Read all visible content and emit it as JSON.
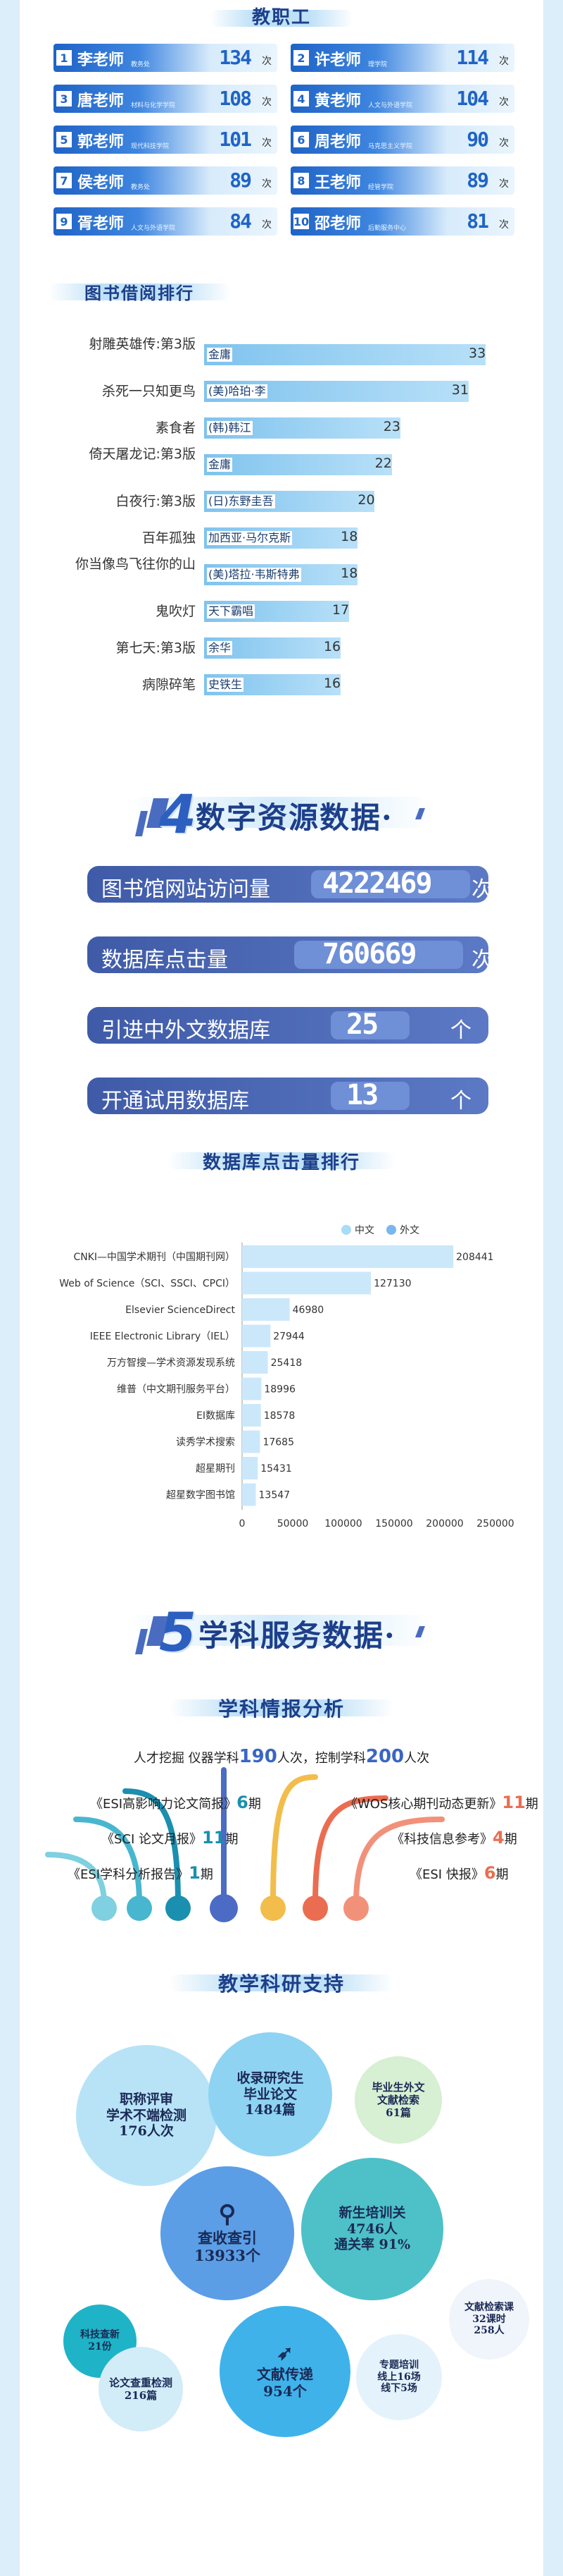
{
  "staff_section": {
    "title": "教职工",
    "unit": "次",
    "items": [
      {
        "rank": "1",
        "name": "李老师",
        "dept": "教务处",
        "count": "134"
      },
      {
        "rank": "2",
        "name": "许老师",
        "dept": "理学院",
        "count": "114"
      },
      {
        "rank": "3",
        "name": "唐老师",
        "dept": "材料与化学学院",
        "count": "108"
      },
      {
        "rank": "4",
        "name": "黄老师",
        "dept": "人文与外语学院",
        "count": "104"
      },
      {
        "rank": "5",
        "name": "郭老师",
        "dept": "现代科技学院",
        "count": "101"
      },
      {
        "rank": "6",
        "name": "周老师",
        "dept": "马克思主义学院",
        "count": "90"
      },
      {
        "rank": "7",
        "name": "侯老师",
        "dept": "教务处",
        "count": "89"
      },
      {
        "rank": "8",
        "name": "王老师",
        "dept": "经管学院",
        "count": "89"
      },
      {
        "rank": "9",
        "name": "胥老师",
        "dept": "人文与外语学院",
        "count": "84"
      },
      {
        "rank": "10",
        "name": "邵老师",
        "dept": "后勤服务中心",
        "count": "81"
      }
    ]
  },
  "book_section": {
    "title": "图书借阅排行",
    "books": [
      {
        "title": "射雕英雄传:第3版",
        "author": "金庸",
        "value": 33
      },
      {
        "title": "杀死一只知更鸟",
        "author": "(美)哈珀·李",
        "value": 31
      },
      {
        "title": "素食者",
        "author": "(韩)韩江",
        "value": 23
      },
      {
        "title": "倚天屠龙记:第3版",
        "author": "金庸",
        "value": 22
      },
      {
        "title": "白夜行:第3版",
        "author": "(日)东野圭吾",
        "value": 20
      },
      {
        "title": "百年孤独",
        "author": "加西亚·马尔克斯",
        "value": 18
      },
      {
        "title": "你当像鸟飞往你的山",
        "author": "(美)塔拉·韦斯特弗",
        "value": 18
      },
      {
        "title": "鬼吹灯",
        "author": "天下霸唱",
        "value": 17
      },
      {
        "title": "第七天:第3版",
        "author": "余华",
        "value": 16
      },
      {
        "title": "病隙碎笔",
        "author": "史铁生",
        "value": 16
      }
    ]
  },
  "digital_section": {
    "number": "4",
    "title": "数字资源数据·",
    "stats": [
      {
        "label": "图书馆网站访问量",
        "value": "4222469",
        "unit": "次"
      },
      {
        "label": "数据库点击量",
        "value": "760669",
        "unit": "次"
      },
      {
        "label": "引进中外文数据库",
        "value": "25",
        "unit": "个"
      },
      {
        "label": "开通试用数据库",
        "value": "13",
        "unit": "个"
      }
    ]
  },
  "db_chart_title": "数据库点击量排行",
  "chart_data": {
    "type": "bar",
    "orientation": "horizontal",
    "title": "数据库点击量排行",
    "legend": [
      "中文",
      "外文"
    ],
    "legend_position": "top-right",
    "categories": [
      "CNKI—中国学术期刊（中国期刊网）",
      "Web of Science（SCI、SSCI、CPCI）",
      "Elsevier ScienceDirect",
      "IEEE Electronic Library（IEL）",
      "万方智搜—学术资源发现系统",
      "维普（中文期刊服务平台）",
      "EI数据库",
      "读秀学术搜索",
      "超星期刊",
      "超星数字图书馆"
    ],
    "values": [
      208441,
      127130,
      46980,
      27944,
      25418,
      18996,
      18578,
      17685,
      15431,
      13547
    ],
    "ticks": [
      "0",
      "50000",
      "100000",
      "150000",
      "200000",
      "250000"
    ],
    "xlim": [
      0,
      250000
    ]
  },
  "discipline_section": {
    "number": "5",
    "title": "学科服务数据·",
    "intel_title": "学科情报分析",
    "intel_line": {
      "a": "人才挖掘 仪器学科",
      "b": "190",
      "c": "人次，控制学科",
      "d": "200",
      "e": "人次"
    },
    "left_items": [
      {
        "label": "《ESI高影响力论文简报》",
        "num": "6",
        "unit": "期"
      },
      {
        "label": "《SCI 论文月报》",
        "num": "11",
        "unit": "期"
      },
      {
        "label": "《ESI学科分析报告》",
        "num": "1",
        "unit": "期"
      }
    ],
    "right_items": [
      {
        "label": "《WOS核心期刊动态更新》",
        "num": "11",
        "unit": "期"
      },
      {
        "label": "《科技信息参考》",
        "num": "4",
        "unit": "期"
      },
      {
        "label": "《ESI 快报》",
        "num": "6",
        "unit": "期"
      }
    ],
    "support_title": "教学科研支持",
    "bubbles": [
      {
        "line1": "职称评审",
        "line2": "学术不端检测",
        "line3": "176人次"
      },
      {
        "line1": "收录研究生",
        "line2": "毕业论文",
        "line3": "1484篇"
      },
      {
        "line1": "毕业生外文",
        "line2": "文献检索",
        "line3": "61篇"
      },
      {
        "line1": "查收查引",
        "line2": "13933个"
      },
      {
        "line1": "新生培训关",
        "line2": "4746人",
        "line3": "通关率 91%"
      },
      {
        "line1": "科技查新",
        "line2": "21份"
      },
      {
        "line1": "文献检索课",
        "line2": "32课时",
        "line3": "258人"
      },
      {
        "line1": "论文查重检测",
        "line2": "216篇"
      },
      {
        "line1": "文献传递",
        "line2": "954个"
      },
      {
        "line1": "专题培训",
        "line2": "线上16场",
        "line3": "线下5场"
      }
    ]
  }
}
